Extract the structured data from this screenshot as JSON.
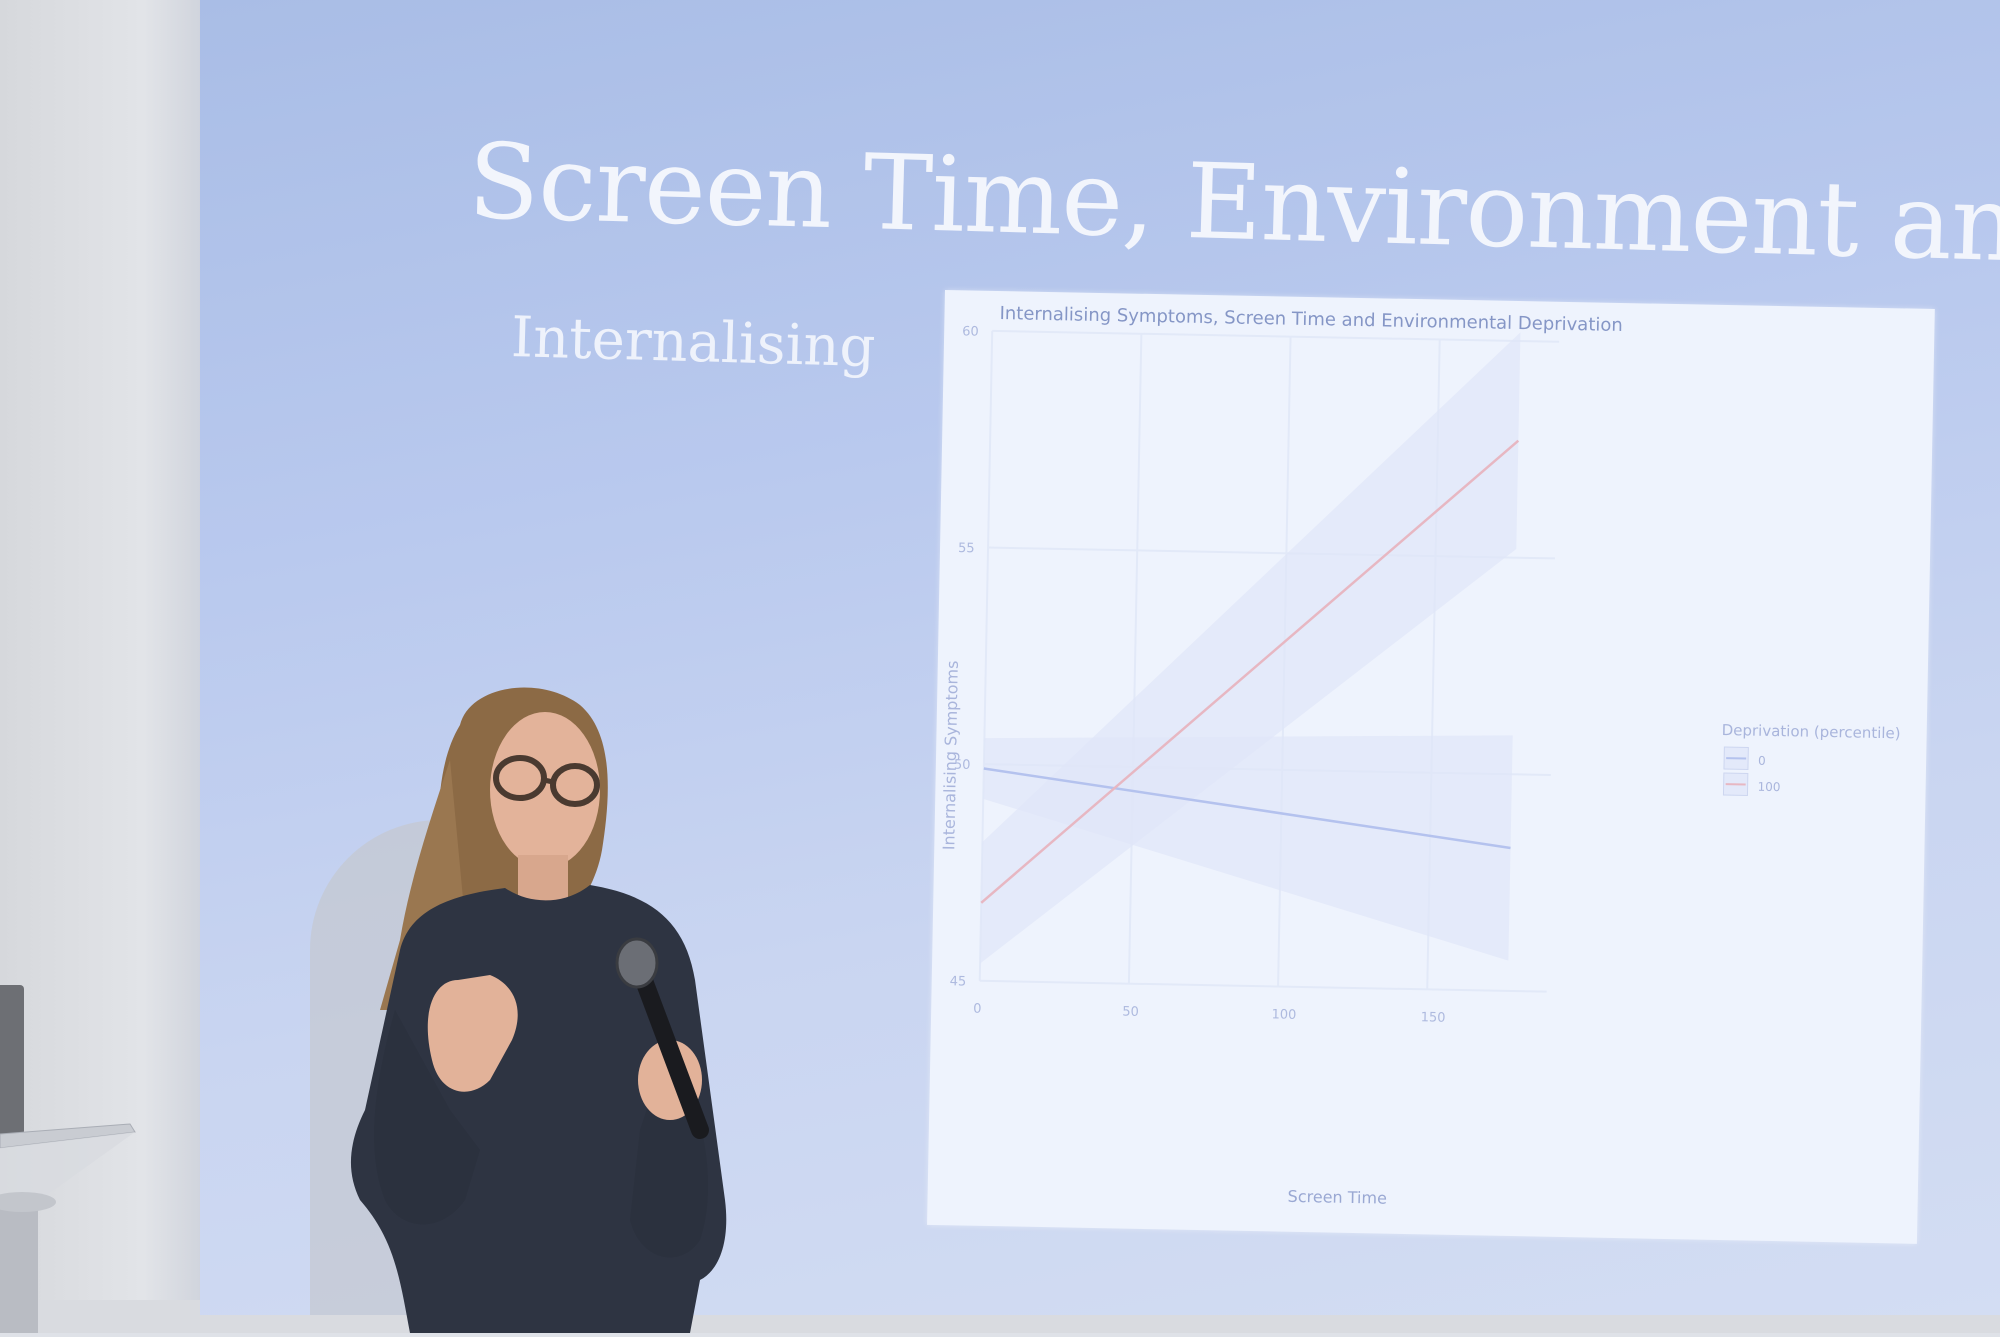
{
  "slide": {
    "title": "Screen Time, Environment and Well-Bein",
    "subtitle": "Internalising"
  },
  "chart_data": {
    "type": "line",
    "title": "Internalising Symptoms, Screen Time and Environmental Deprivation",
    "xlabel": "Screen Time",
    "ylabel": "Internalising Symptoms",
    "xlim": [
      0,
      185
    ],
    "ylim": [
      45,
      60
    ],
    "x_ticks": [
      "0",
      "50",
      "100",
      "150"
    ],
    "y_ticks": [
      "45",
      "50",
      "55",
      "60"
    ],
    "grid": true,
    "legend": {
      "title": "Deprivation (percentile)",
      "position": "right",
      "entries": [
        "0",
        "100"
      ]
    },
    "series": [
      {
        "name": "0",
        "color": "#b4c2ee",
        "x": [
          0,
          177
        ],
        "y": [
          49.9,
          48.3
        ],
        "band_upper": [
          50.6,
          50.9
        ],
        "band_lower": [
          49.2,
          45.7
        ]
      },
      {
        "name": "100",
        "color": "#e7b7c2",
        "x": [
          0,
          177
        ],
        "y": [
          46.8,
          57.7
        ],
        "band_upper": [
          48.2,
          60.2
        ],
        "band_lower": [
          45.4,
          55.2
        ]
      }
    ]
  }
}
